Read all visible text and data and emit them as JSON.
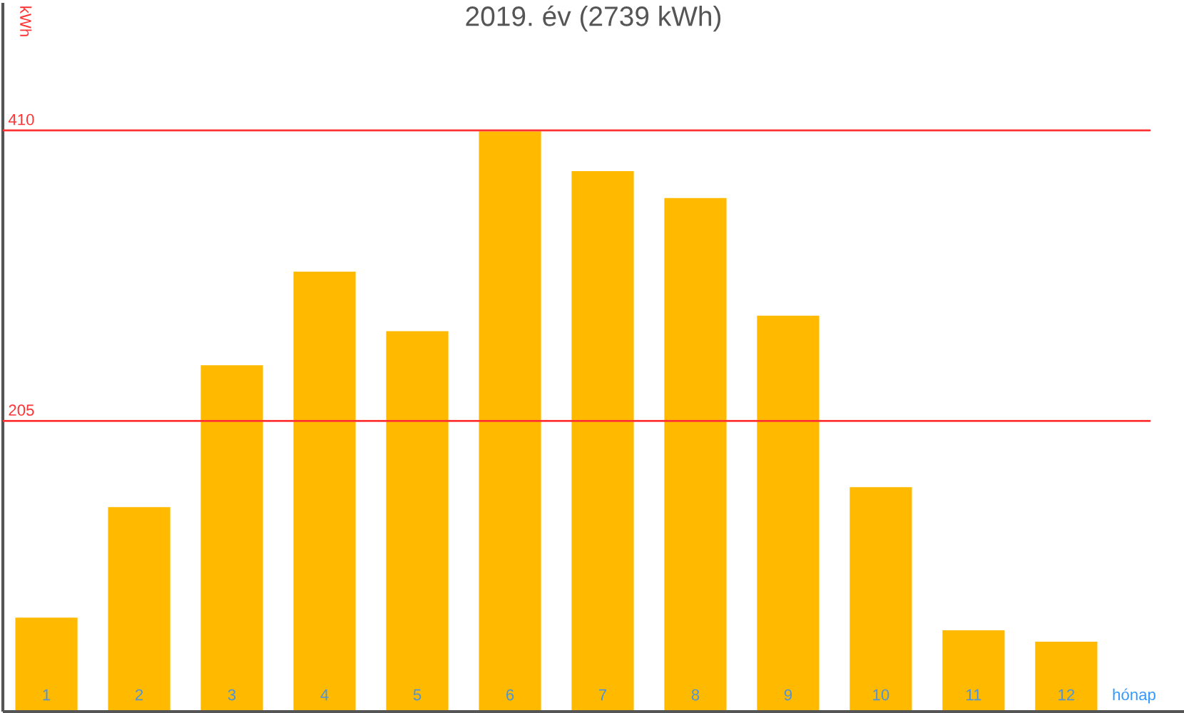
{
  "chart_data": {
    "type": "bar",
    "title": "2019. év (2739 kWh)",
    "xlabel": "hónap",
    "ylabel": "kWh",
    "categories": [
      "1",
      "2",
      "3",
      "4",
      "5",
      "6",
      "7",
      "8",
      "9",
      "10",
      "11",
      "12"
    ],
    "values": [
      67,
      145,
      245,
      311,
      269,
      410,
      382,
      363,
      280,
      159,
      58,
      50
    ],
    "color": "#ffba00",
    "ylim": [
      0,
      500
    ],
    "yticks": [
      205,
      410
    ],
    "grid": "y"
  }
}
